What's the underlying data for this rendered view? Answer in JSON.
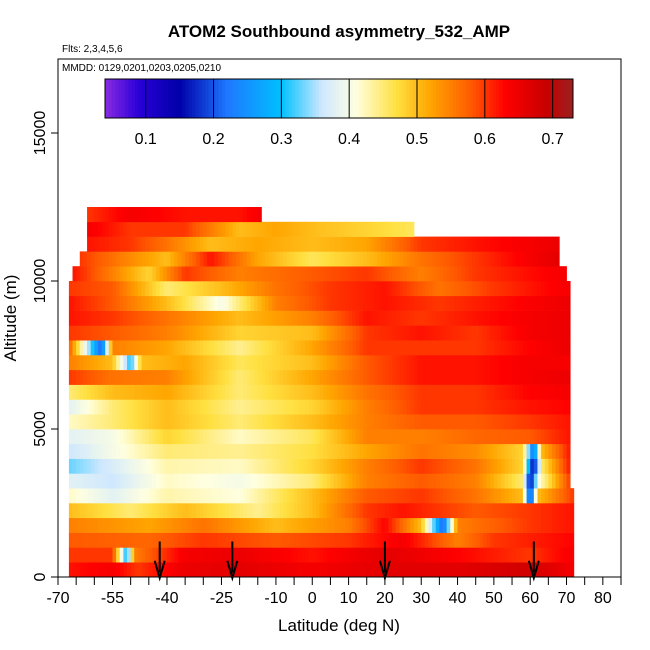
{
  "chart_data": {
    "type": "heatmap",
    "title": "ATOM2 Southbound asymmetry_532_AMP",
    "flights_note": "Flts: 2,3,4,5,6",
    "dates_note": "MMDD: 0129,0201,0203,0205,0210",
    "xlabel": "Latitude (deg N)",
    "ylabel": "Altitude (m)",
    "xlim": [
      -70,
      85
    ],
    "ylim": [
      0,
      17500
    ],
    "x_ticks": [
      -70,
      -55,
      -40,
      -25,
      -10,
      0,
      10,
      20,
      30,
      40,
      50,
      60,
      70,
      80
    ],
    "x_minor_ticks": [
      -65,
      -60,
      -50,
      -45,
      -35,
      -30,
      -20,
      -15,
      -5,
      5,
      15,
      25,
      35,
      45,
      55,
      65,
      75,
      85
    ],
    "y_ticks": [
      0,
      5000,
      10000,
      15000
    ],
    "colorbar": {
      "range": [
        0.04,
        0.73
      ],
      "ticks": [
        0.1,
        0.2,
        0.3,
        0.4,
        0.5,
        0.6,
        0.7
      ],
      "stops": [
        {
          "v": 0.04,
          "c": "#8a2be2"
        },
        {
          "v": 0.09,
          "c": "#2a00d8"
        },
        {
          "v": 0.15,
          "c": "#0000a8"
        },
        {
          "v": 0.22,
          "c": "#1e78ff"
        },
        {
          "v": 0.3,
          "c": "#00c0ff"
        },
        {
          "v": 0.36,
          "c": "#cfe8ff"
        },
        {
          "v": 0.41,
          "c": "#ffffe0"
        },
        {
          "v": 0.47,
          "c": "#ffe040"
        },
        {
          "v": 0.52,
          "c": "#ffa500"
        },
        {
          "v": 0.58,
          "c": "#ff5a00"
        },
        {
          "v": 0.63,
          "c": "#ff0000"
        },
        {
          "v": 0.69,
          "c": "#c80000"
        },
        {
          "v": 0.73,
          "c": "#9b2020"
        }
      ]
    },
    "arrow_latitudes": [
      -42,
      -22,
      20,
      61
    ],
    "layers": [
      {
        "alt": 0,
        "h": 500,
        "x0": -67,
        "x1": 72,
        "pts": [
          [
            -67,
            0.62
          ],
          [
            -55,
            0.64
          ],
          [
            -48,
            0.6
          ],
          [
            -35,
            0.65
          ],
          [
            -20,
            0.66
          ],
          [
            0,
            0.64
          ],
          [
            20,
            0.66
          ],
          [
            40,
            0.66
          ],
          [
            60,
            0.68
          ],
          [
            72,
            0.64
          ]
        ]
      },
      {
        "alt": 500,
        "h": 500,
        "x0": -67,
        "x1": 72,
        "pts": [
          [
            -67,
            0.6
          ],
          [
            -55,
            0.6
          ],
          [
            -51,
            0.28
          ],
          [
            -49,
            0.55
          ],
          [
            -35,
            0.64
          ],
          [
            -20,
            0.65
          ],
          [
            0,
            0.62
          ],
          [
            20,
            0.66
          ],
          [
            40,
            0.63
          ],
          [
            60,
            0.6
          ],
          [
            72,
            0.64
          ]
        ]
      },
      {
        "alt": 1000,
        "h": 500,
        "x0": -67,
        "x1": 72,
        "pts": [
          [
            -67,
            0.58
          ],
          [
            -45,
            0.57
          ],
          [
            -30,
            0.6
          ],
          [
            -10,
            0.58
          ],
          [
            10,
            0.6
          ],
          [
            25,
            0.64
          ],
          [
            40,
            0.55
          ],
          [
            50,
            0.6
          ],
          [
            65,
            0.62
          ],
          [
            72,
            0.63
          ]
        ]
      },
      {
        "alt": 1500,
        "h": 500,
        "x0": -67,
        "x1": 72,
        "pts": [
          [
            -67,
            0.55
          ],
          [
            -45,
            0.52
          ],
          [
            -30,
            0.56
          ],
          [
            -10,
            0.5
          ],
          [
            10,
            0.55
          ],
          [
            20,
            0.63
          ],
          [
            30,
            0.5
          ],
          [
            36,
            0.2
          ],
          [
            40,
            0.55
          ],
          [
            60,
            0.6
          ],
          [
            72,
            0.62
          ]
        ]
      },
      {
        "alt": 2000,
        "h": 500,
        "x0": -67,
        "x1": 72,
        "pts": [
          [
            -67,
            0.5
          ],
          [
            -50,
            0.45
          ],
          [
            -35,
            0.5
          ],
          [
            -15,
            0.44
          ],
          [
            0,
            0.5
          ],
          [
            15,
            0.6
          ],
          [
            25,
            0.62
          ],
          [
            45,
            0.58
          ],
          [
            60,
            0.6
          ],
          [
            72,
            0.62
          ]
        ]
      },
      {
        "alt": 2500,
        "h": 500,
        "x0": -67,
        "x1": 72,
        "pts": [
          [
            -67,
            0.42
          ],
          [
            -55,
            0.38
          ],
          [
            -40,
            0.43
          ],
          [
            -20,
            0.41
          ],
          [
            0,
            0.5
          ],
          [
            15,
            0.58
          ],
          [
            30,
            0.6
          ],
          [
            45,
            0.56
          ],
          [
            58,
            0.5
          ],
          [
            60,
            0.15
          ],
          [
            62,
            0.5
          ],
          [
            72,
            0.6
          ]
        ]
      },
      {
        "alt": 3000,
        "h": 500,
        "x0": -67,
        "x1": 71,
        "pts": [
          [
            -67,
            0.38
          ],
          [
            -55,
            0.36
          ],
          [
            -40,
            0.42
          ],
          [
            -20,
            0.4
          ],
          [
            0,
            0.45
          ],
          [
            15,
            0.55
          ],
          [
            30,
            0.58
          ],
          [
            45,
            0.55
          ],
          [
            58,
            0.45
          ],
          [
            60,
            0.12
          ],
          [
            62,
            0.4
          ],
          [
            71,
            0.6
          ]
        ]
      },
      {
        "alt": 3500,
        "h": 500,
        "x0": -67,
        "x1": 71,
        "pts": [
          [
            -67,
            0.33
          ],
          [
            -55,
            0.37
          ],
          [
            -40,
            0.43
          ],
          [
            -20,
            0.42
          ],
          [
            0,
            0.48
          ],
          [
            15,
            0.55
          ],
          [
            30,
            0.6
          ],
          [
            45,
            0.56
          ],
          [
            58,
            0.48
          ],
          [
            61,
            0.12
          ],
          [
            63,
            0.45
          ],
          [
            71,
            0.62
          ]
        ]
      },
      {
        "alt": 4000,
        "h": 500,
        "x0": -67,
        "x1": 71,
        "pts": [
          [
            -67,
            0.36
          ],
          [
            -55,
            0.4
          ],
          [
            -40,
            0.45
          ],
          [
            -20,
            0.44
          ],
          [
            0,
            0.47
          ],
          [
            15,
            0.52
          ],
          [
            30,
            0.56
          ],
          [
            45,
            0.54
          ],
          [
            58,
            0.48
          ],
          [
            61,
            0.2
          ],
          [
            63,
            0.5
          ],
          [
            71,
            0.62
          ]
        ]
      },
      {
        "alt": 4500,
        "h": 500,
        "x0": -67,
        "x1": 71,
        "pts": [
          [
            -67,
            0.38
          ],
          [
            -55,
            0.4
          ],
          [
            -40,
            0.48
          ],
          [
            -20,
            0.42
          ],
          [
            0,
            0.46
          ],
          [
            15,
            0.55
          ],
          [
            30,
            0.55
          ],
          [
            45,
            0.57
          ],
          [
            60,
            0.58
          ],
          [
            71,
            0.62
          ]
        ]
      },
      {
        "alt": 5000,
        "h": 500,
        "x0": -67,
        "x1": 71,
        "pts": [
          [
            -67,
            0.42
          ],
          [
            -55,
            0.45
          ],
          [
            -40,
            0.5
          ],
          [
            -20,
            0.45
          ],
          [
            0,
            0.5
          ],
          [
            15,
            0.55
          ],
          [
            30,
            0.58
          ],
          [
            45,
            0.58
          ],
          [
            60,
            0.6
          ],
          [
            71,
            0.62
          ]
        ]
      },
      {
        "alt": 5500,
        "h": 500,
        "x0": -67,
        "x1": 71,
        "pts": [
          [
            -67,
            0.38
          ],
          [
            -55,
            0.45
          ],
          [
            -40,
            0.5
          ],
          [
            -20,
            0.44
          ],
          [
            0,
            0.48
          ],
          [
            15,
            0.55
          ],
          [
            30,
            0.6
          ],
          [
            45,
            0.6
          ],
          [
            60,
            0.62
          ],
          [
            71,
            0.63
          ]
        ]
      },
      {
        "alt": 6000,
        "h": 500,
        "x0": -67,
        "x1": 71,
        "pts": [
          [
            -67,
            0.45
          ],
          [
            -55,
            0.5
          ],
          [
            -40,
            0.52
          ],
          [
            -20,
            0.45
          ],
          [
            0,
            0.5
          ],
          [
            15,
            0.56
          ],
          [
            30,
            0.6
          ],
          [
            45,
            0.6
          ],
          [
            60,
            0.63
          ],
          [
            71,
            0.64
          ]
        ]
      },
      {
        "alt": 6500,
        "h": 500,
        "x0": -67,
        "x1": 71,
        "pts": [
          [
            -67,
            0.6
          ],
          [
            -55,
            0.56
          ],
          [
            -40,
            0.55
          ],
          [
            -20,
            0.45
          ],
          [
            0,
            0.52
          ],
          [
            15,
            0.58
          ],
          [
            30,
            0.62
          ],
          [
            45,
            0.62
          ],
          [
            60,
            0.64
          ],
          [
            71,
            0.65
          ]
        ]
      },
      {
        "alt": 7000,
        "h": 500,
        "x0": -67,
        "x1": 71,
        "pts": [
          [
            -67,
            0.55
          ],
          [
            -55,
            0.5
          ],
          [
            -50,
            0.3
          ],
          [
            -47,
            0.5
          ],
          [
            -35,
            0.52
          ],
          [
            -20,
            0.46
          ],
          [
            0,
            0.5
          ],
          [
            15,
            0.58
          ],
          [
            30,
            0.62
          ],
          [
            45,
            0.62
          ],
          [
            60,
            0.64
          ],
          [
            71,
            0.64
          ]
        ]
      },
      {
        "alt": 7500,
        "h": 500,
        "x0": -67,
        "x1": 71,
        "pts": [
          [
            -67,
            0.58
          ],
          [
            -58,
            0.2
          ],
          [
            -55,
            0.55
          ],
          [
            -40,
            0.52
          ],
          [
            -20,
            0.44
          ],
          [
            0,
            0.52
          ],
          [
            15,
            0.6
          ],
          [
            30,
            0.6
          ],
          [
            45,
            0.6
          ],
          [
            60,
            0.63
          ],
          [
            71,
            0.65
          ]
        ]
      },
      {
        "alt": 8000,
        "h": 500,
        "x0": -67,
        "x1": 71,
        "pts": [
          [
            -67,
            0.6
          ],
          [
            -55,
            0.58
          ],
          [
            -40,
            0.55
          ],
          [
            -20,
            0.48
          ],
          [
            0,
            0.5
          ],
          [
            15,
            0.6
          ],
          [
            30,
            0.62
          ],
          [
            45,
            0.6
          ],
          [
            60,
            0.64
          ],
          [
            71,
            0.65
          ]
        ]
      },
      {
        "alt": 8500,
        "h": 500,
        "x0": -67,
        "x1": 71,
        "pts": [
          [
            -67,
            0.62
          ],
          [
            -55,
            0.6
          ],
          [
            -40,
            0.56
          ],
          [
            -20,
            0.5
          ],
          [
            0,
            0.55
          ],
          [
            15,
            0.62
          ],
          [
            30,
            0.6
          ],
          [
            45,
            0.62
          ],
          [
            60,
            0.64
          ],
          [
            71,
            0.65
          ]
        ]
      },
      {
        "alt": 9000,
        "h": 500,
        "x0": -67,
        "x1": 71,
        "pts": [
          [
            -67,
            0.62
          ],
          [
            -55,
            0.58
          ],
          [
            -40,
            0.5
          ],
          [
            -25,
            0.4
          ],
          [
            -10,
            0.55
          ],
          [
            5,
            0.6
          ],
          [
            20,
            0.62
          ],
          [
            35,
            0.6
          ],
          [
            50,
            0.62
          ],
          [
            71,
            0.65
          ]
        ]
      },
      {
        "alt": 9500,
        "h": 500,
        "x0": -67,
        "x1": 71,
        "pts": [
          [
            -67,
            0.6
          ],
          [
            -55,
            0.58
          ],
          [
            -40,
            0.45
          ],
          [
            -25,
            0.5
          ],
          [
            -10,
            0.56
          ],
          [
            5,
            0.6
          ],
          [
            20,
            0.62
          ],
          [
            35,
            0.56
          ],
          [
            50,
            0.6
          ],
          [
            71,
            0.64
          ]
        ]
      },
      {
        "alt": 10000,
        "h": 500,
        "x0": -66,
        "x1": 70,
        "pts": [
          [
            -66,
            0.62
          ],
          [
            -55,
            0.55
          ],
          [
            -45,
            0.48
          ],
          [
            -35,
            0.6
          ],
          [
            -20,
            0.55
          ],
          [
            0,
            0.58
          ],
          [
            15,
            0.6
          ],
          [
            30,
            0.55
          ],
          [
            45,
            0.6
          ],
          [
            70,
            0.64
          ]
        ]
      },
      {
        "alt": 10500,
        "h": 500,
        "x0": -64,
        "x1": 68,
        "pts": [
          [
            -64,
            0.6
          ],
          [
            -52,
            0.55
          ],
          [
            -40,
            0.5
          ],
          [
            -28,
            0.62
          ],
          [
            -15,
            0.52
          ],
          [
            0,
            0.46
          ],
          [
            15,
            0.5
          ],
          [
            30,
            0.56
          ],
          [
            45,
            0.6
          ],
          [
            68,
            0.66
          ]
        ]
      },
      {
        "alt": 11000,
        "h": 500,
        "x0": -62,
        "x1": 68,
        "pts": [
          [
            -62,
            0.62
          ],
          [
            -50,
            0.6
          ],
          [
            -40,
            0.56
          ],
          [
            -28,
            0.5
          ],
          [
            -15,
            0.52
          ],
          [
            0,
            0.5
          ],
          [
            15,
            0.52
          ],
          [
            30,
            0.6
          ],
          [
            45,
            0.62
          ],
          [
            68,
            0.65
          ]
        ]
      },
      {
        "alt": 11500,
        "h": 500,
        "x0": -62,
        "x1": 28,
        "pts": [
          [
            -62,
            0.64
          ],
          [
            -50,
            0.6
          ],
          [
            -35,
            0.6
          ],
          [
            -20,
            0.5
          ],
          [
            -10,
            0.52
          ],
          [
            0,
            0.5
          ],
          [
            15,
            0.48
          ],
          [
            28,
            0.46
          ]
        ]
      },
      {
        "alt": 12000,
        "h": 500,
        "x0": -62,
        "x1": -14,
        "pts": [
          [
            -62,
            0.6
          ],
          [
            -50,
            0.64
          ],
          [
            -35,
            0.62
          ],
          [
            -20,
            0.62
          ],
          [
            -14,
            0.64
          ]
        ]
      }
    ]
  }
}
